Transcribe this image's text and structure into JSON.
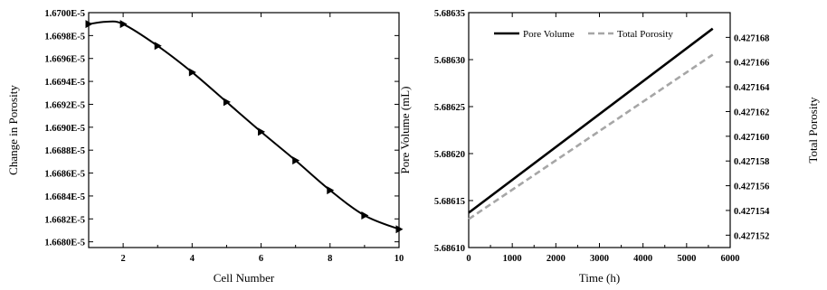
{
  "chart_data": [
    {
      "type": "line",
      "title": "",
      "xlabel": "Cell Number",
      "ylabel": "Change in Porosity",
      "xlim": [
        1,
        10
      ],
      "ylim": [
        1.66795e-05,
        1.67e-05
      ],
      "grid": false,
      "legend": "none",
      "x_ticks": [
        2,
        4,
        6,
        8,
        10
      ],
      "x_tick_labels": [
        "2",
        "4",
        "6",
        "8",
        "10"
      ],
      "y_ticks": [
        1.668e-05,
        1.6682e-05,
        1.6684e-05,
        1.6686e-05,
        1.6688e-05,
        1.669e-05,
        1.6692e-05,
        1.6694e-05,
        1.6696e-05,
        1.6698e-05,
        1.67e-05
      ],
      "y_tick_labels": [
        "1.6680E-5",
        "1.6682E-5",
        "1.6684E-5",
        "1.6686E-5",
        "1.6688E-5",
        "1.6690E-5",
        "1.6692E-5",
        "1.6694E-5",
        "1.6696E-5",
        "1.6698E-5",
        "1.6700E-5"
      ],
      "series": [
        {
          "x": [
            1,
            2,
            3,
            4,
            5,
            6,
            7,
            8,
            9,
            10
          ],
          "values": [
            1.6699e-05,
            1.6699e-05,
            1.66971e-05,
            1.66948e-05,
            1.66922e-05,
            1.66896e-05,
            1.66871e-05,
            1.66845e-05,
            1.66823e-05,
            1.66811e-05
          ],
          "color": "#000000",
          "marker": "triangle-right"
        }
      ],
      "curve_samples": {
        "x": [
          1.0,
          1.5,
          2.0
        ],
        "y": [
          1.6699e-05,
          1.66992e-05,
          1.6699e-05
        ]
      }
    },
    {
      "type": "line",
      "title": "",
      "xlabel": "Time (h)",
      "ylabel": "Pore Volume (mL)",
      "ylabel_right": "Total Porosity",
      "xlim": [
        0,
        6000
      ],
      "ylim": [
        5.6861,
        5.68635
      ],
      "ylim_right": [
        0.427151,
        0.42717
      ],
      "grid": false,
      "legend": "top-left",
      "x_ticks": [
        0,
        1000,
        2000,
        3000,
        4000,
        5000,
        6000
      ],
      "x_tick_labels": [
        "0",
        "1000",
        "2000",
        "3000",
        "4000",
        "5000",
        "6000"
      ],
      "y_ticks": [
        5.6861,
        5.68615,
        5.6862,
        5.68625,
        5.6863,
        5.68635
      ],
      "y_tick_labels": [
        "5.68610",
        "5.68615",
        "5.68620",
        "5.68625",
        "5.68630",
        "5.68635"
      ],
      "y_ticks_right": [
        0.427152,
        0.427154,
        0.427156,
        0.427158,
        0.42716,
        0.427162,
        0.427164,
        0.427166,
        0.427168
      ],
      "y_tick_labels_right": [
        "0.427152",
        "0.427154",
        "0.427156",
        "0.427158",
        "0.427160",
        "0.427162",
        "0.427164",
        "0.427166",
        "0.427168"
      ],
      "series": [
        {
          "name": "Pore Volume",
          "axis": "left",
          "x": [
            0,
            5600
          ],
          "values": [
            5.686137,
            5.686333
          ],
          "color": "#000000",
          "style": "solid"
        },
        {
          "name": "Total Porosity",
          "axis": "right",
          "x": [
            0,
            5600
          ],
          "values": [
            0.4271533,
            0.4271666
          ],
          "color": "#a6a6a6",
          "style": "dashed"
        }
      ]
    }
  ]
}
